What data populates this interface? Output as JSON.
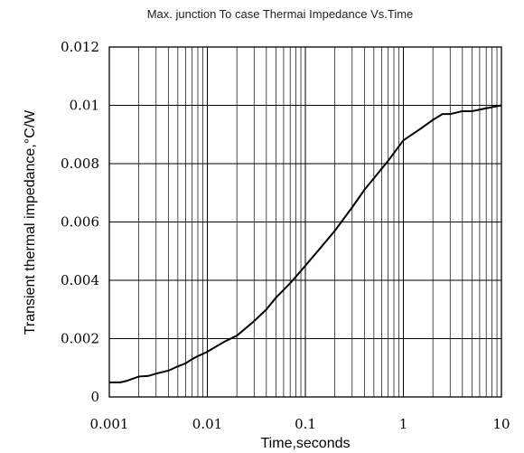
{
  "chart_data": {
    "type": "line",
    "title": "Max. junction To case Thermai Impedance Vs.Time",
    "xlabel": "Time,seconds",
    "ylabel": "Transient thermal impedance,°C/W",
    "xscale": "log",
    "xlim": [
      0.001,
      10
    ],
    "ylim": [
      0,
      0.012
    ],
    "x_ticks": [
      0.001,
      0.01,
      0.1,
      1,
      10
    ],
    "x_tick_labels": [
      "0.001",
      "0.01",
      "0.1",
      "1",
      "10"
    ],
    "y_ticks": [
      0,
      0.002,
      0.004,
      0.006,
      0.008,
      0.01,
      0.012
    ],
    "y_tick_labels": [
      "0",
      "0.002",
      "0.004",
      "0.006",
      "0.008",
      "0.01",
      "0.012"
    ],
    "grid": true,
    "line_color": "#000000",
    "series": [
      {
        "x": [
          0.001,
          0.0013,
          0.0015,
          0.002,
          0.0025,
          0.003,
          0.004,
          0.005,
          0.006,
          0.007,
          0.008,
          0.01,
          0.015,
          0.02,
          0.03,
          0.04,
          0.05,
          0.07,
          0.1,
          0.15,
          0.2,
          0.3,
          0.4,
          0.5,
          0.7,
          1,
          1.5,
          2,
          2.5,
          3,
          4,
          5,
          7,
          10
        ],
        "y": [
          0.0005,
          0.0005,
          0.00055,
          0.0007,
          0.00072,
          0.0008,
          0.0009,
          0.00105,
          0.00115,
          0.0013,
          0.0014,
          0.00155,
          0.0019,
          0.0021,
          0.0026,
          0.003,
          0.0034,
          0.0039,
          0.0045,
          0.0052,
          0.0057,
          0.0065,
          0.0071,
          0.0075,
          0.0081,
          0.0088,
          0.0092,
          0.0095,
          0.0097,
          0.0097,
          0.0098,
          0.0098,
          0.0099,
          0.01
        ]
      }
    ]
  }
}
